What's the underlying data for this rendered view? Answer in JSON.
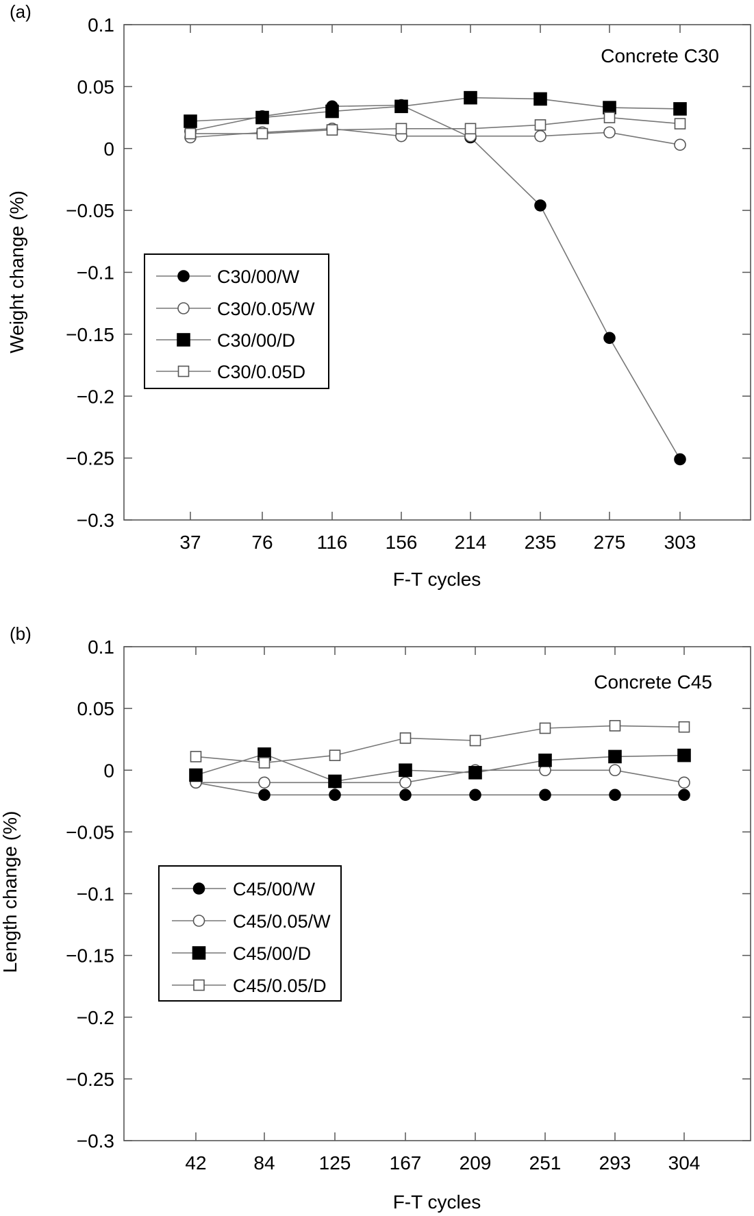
{
  "chart_data": [
    {
      "type": "line",
      "panel_label": "(a)",
      "annotation": "Concrete C30",
      "xlabel": "F-T cycles",
      "ylabel": "Weight change (%)",
      "categories": [
        "37",
        "76",
        "116",
        "156",
        "214",
        "235",
        "275",
        "303"
      ],
      "ylim": [
        -0.3,
        0.1
      ],
      "yticks": [
        0.1,
        0.05,
        0,
        -0.05,
        -0.1,
        -0.15,
        -0.2,
        -0.25,
        -0.3
      ],
      "ytick_labels": [
        "0.1",
        "0.05",
        "0",
        "−0.05",
        "−0.1",
        "−0.15",
        "−0.2",
        "−0.25",
        "−0.3"
      ],
      "grid": false,
      "legend_position": "left",
      "series": [
        {
          "name": "C30/00/W",
          "marker": "filled-circle",
          "values": [
            0.014,
            0.026,
            0.034,
            0.035,
            0.009,
            -0.046,
            -0.153,
            -0.251
          ]
        },
        {
          "name": "C30/0.05/W",
          "marker": "open-circle",
          "values": [
            0.009,
            0.013,
            0.016,
            0.01,
            0.01,
            0.01,
            0.013,
            0.003
          ]
        },
        {
          "name": "C30/00/D",
          "marker": "filled-square",
          "values": [
            0.022,
            0.025,
            0.03,
            0.034,
            0.041,
            0.04,
            0.033,
            0.032
          ]
        },
        {
          "name": "C30/0.05D",
          "marker": "open-square",
          "values": [
            0.012,
            0.012,
            0.015,
            0.016,
            0.016,
            0.019,
            0.025,
            0.02
          ]
        }
      ]
    },
    {
      "type": "line",
      "panel_label": "(b)",
      "annotation": "Concrete C45",
      "xlabel": "F-T cycles",
      "ylabel": "Length change (%)",
      "categories": [
        "42",
        "84",
        "125",
        "167",
        "209",
        "251",
        "293",
        "304"
      ],
      "ylim": [
        -0.3,
        0.1
      ],
      "yticks": [
        0.1,
        0.05,
        0,
        -0.05,
        -0.1,
        -0.15,
        -0.2,
        -0.25,
        -0.3
      ],
      "ytick_labels": [
        "0.1",
        "0.05",
        "0",
        "−0.05",
        "−0.1",
        "−0.15",
        "−0.2",
        "−0.25",
        "−0.3"
      ],
      "grid": false,
      "legend_position": "left",
      "series": [
        {
          "name": "C45/00/W",
          "marker": "filled-circle",
          "values": [
            -0.01,
            -0.02,
            -0.02,
            -0.02,
            -0.02,
            -0.02,
            -0.02,
            -0.02
          ]
        },
        {
          "name": "C45/0.05/W",
          "marker": "open-circle",
          "values": [
            -0.01,
            -0.01,
            -0.01,
            -0.01,
            0.0,
            0.0,
            0.0,
            -0.01
          ]
        },
        {
          "name": "C45/00/D",
          "marker": "filled-square",
          "values": [
            -0.004,
            0.013,
            -0.009,
            0.0,
            -0.002,
            0.008,
            0.011,
            0.012
          ]
        },
        {
          "name": "C45/0.05/D",
          "marker": "open-square",
          "values": [
            0.011,
            0.006,
            0.012,
            0.026,
            0.024,
            0.034,
            0.036,
            0.035
          ]
        }
      ]
    }
  ]
}
